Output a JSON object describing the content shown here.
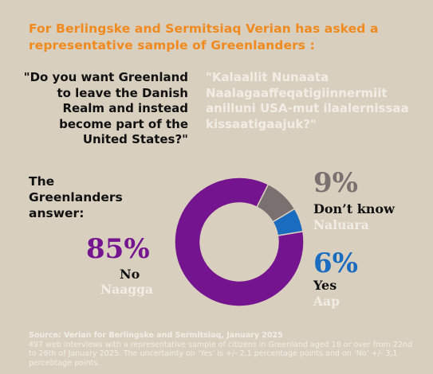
{
  "intro": "For Berlingske and Sermitsiaq Verian has asked a representative sample of Greenlanders :",
  "question_en": "\"Do you want Greenland to leave the Danish Realm and instead become part of the United States?\"",
  "question_kl": "\"Kalaallit Nunaata Naalagaaffeqatigiinnermiit anilluni USA-mut ilaalernissaa kissaatigaajuk?\"",
  "lead": "The Greenlanders answer:",
  "answers": {
    "no": {
      "pct": "85%",
      "en": "No",
      "kl": "Naagga"
    },
    "dontknow": {
      "pct": "9%",
      "en": "Don’t know",
      "kl": "Naluara"
    },
    "yes": {
      "pct": "6%",
      "en": "Yes",
      "kl": "Aap"
    }
  },
  "source": {
    "title": "Source: Verian for Berlingske and Sermitsiaq, January 2025",
    "body": "497 web interviews with a representative sample of citizens in Greenland aged 18 or over from 22nd to 26th of January 2025. The uncertainty on ‘Yes’ is +/- 2,1 percentage points and on ‘No’ +/- 3,1 percebtage points."
  },
  "colors": {
    "background": "#d9cfbf",
    "accent": "#f08a1e",
    "no": "#74148f",
    "dontknow": "#7a7070",
    "yes": "#1a6cc0"
  },
  "chart_data": {
    "type": "pie",
    "donut": true,
    "categories": [
      "Yes",
      "Don’t know",
      "No"
    ],
    "values": [
      6,
      9,
      85
    ],
    "colors": [
      "#1a6cc0",
      "#7a7070",
      "#74148f"
    ]
  }
}
